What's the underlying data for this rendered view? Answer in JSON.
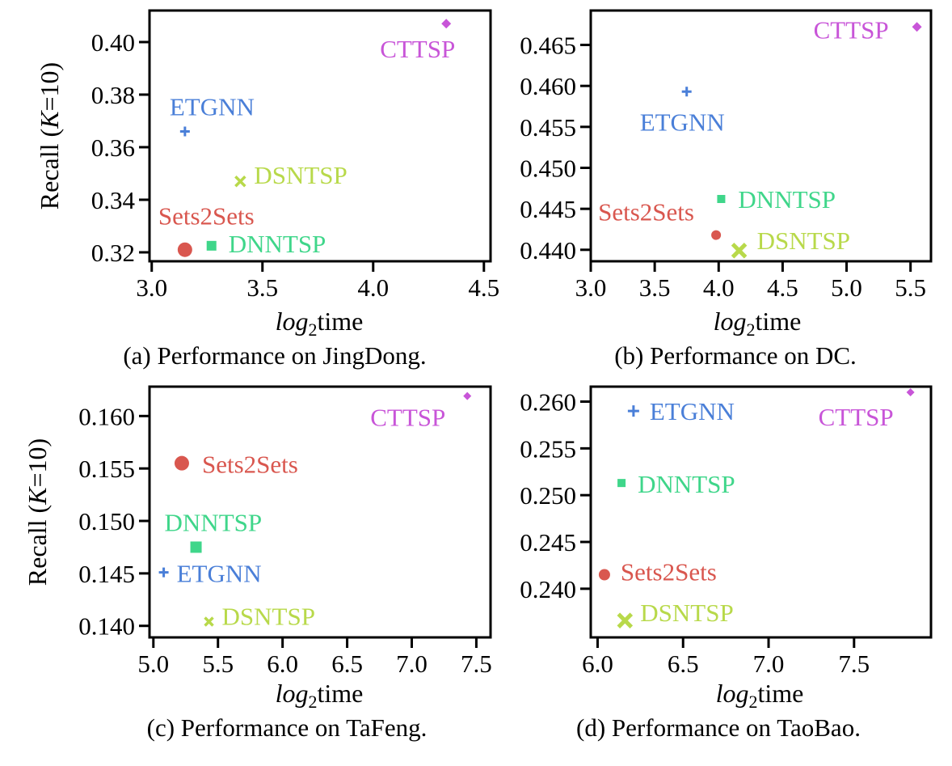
{
  "chart_data": [
    {
      "type": "scatter",
      "caption": "(a) Performance on JingDong.",
      "xlabel_italic": "log",
      "xlabel_sub": "2",
      "xlabel_rest": "time",
      "ylabel_pre": "Recall (",
      "ylabel_italic": "K",
      "ylabel_post": "=10)",
      "xlim": [
        2.99,
        4.53
      ],
      "ylim": [
        0.3166,
        0.412
      ],
      "xticks": [
        "3.0",
        "3.5",
        "4.0",
        "4.5"
      ],
      "yticks": [
        "0.32",
        "0.34",
        "0.36",
        "0.38",
        "0.40"
      ],
      "points": [
        {
          "name": "CTTSP",
          "x": 4.33,
          "y": 0.407
        },
        {
          "name": "ETGNN",
          "x": 3.15,
          "y": 0.366
        },
        {
          "name": "DSNTSP",
          "x": 3.4,
          "y": 0.347
        },
        {
          "name": "Sets2Sets",
          "x": 3.15,
          "y": 0.321
        },
        {
          "name": "DNNTSP",
          "x": 3.27,
          "y": 0.3225
        }
      ]
    },
    {
      "type": "scatter",
      "caption": "(b) Performance on DC.",
      "xlabel_italic": "log",
      "xlabel_sub": "2",
      "xlabel_rest": "time",
      "xlim": [
        3.0,
        5.66
      ],
      "ylim": [
        0.4386,
        0.4692
      ],
      "xticks": [
        "3.0",
        "3.5",
        "4.0",
        "4.5",
        "5.0",
        "5.5"
      ],
      "yticks": [
        "0.440",
        "0.445",
        "0.450",
        "0.455",
        "0.460",
        "0.465"
      ],
      "points": [
        {
          "name": "CTTSP",
          "x": 5.55,
          "y": 0.4672
        },
        {
          "name": "ETGNN",
          "x": 3.75,
          "y": 0.4593
        },
        {
          "name": "DNNTSP",
          "x": 4.02,
          "y": 0.4462
        },
        {
          "name": "Sets2Sets",
          "x": 3.98,
          "y": 0.4418
        },
        {
          "name": "DSNTSP",
          "x": 4.16,
          "y": 0.4399
        }
      ]
    },
    {
      "type": "scatter",
      "caption": "(c) Performance on TaFeng.",
      "xlabel_italic": "log",
      "xlabel_sub": "2",
      "xlabel_rest": "time",
      "ylabel_pre": "Recall (",
      "ylabel_italic": "K",
      "ylabel_post": "=10)",
      "xlim": [
        4.97,
        7.61
      ],
      "ylim": [
        0.1389,
        0.1628
      ],
      "xticks": [
        "5.0",
        "5.5",
        "6.0",
        "6.5",
        "7.0",
        "7.5"
      ],
      "yticks": [
        "0.140",
        "0.145",
        "0.150",
        "0.155",
        "0.160"
      ],
      "points": [
        {
          "name": "CTTSP",
          "x": 7.43,
          "y": 0.1619
        },
        {
          "name": "Sets2Sets",
          "x": 5.22,
          "y": 0.1555
        },
        {
          "name": "DNNTSP",
          "x": 5.33,
          "y": 0.1475
        },
        {
          "name": "ETGNN",
          "x": 5.08,
          "y": 0.1451
        },
        {
          "name": "DSNTSP",
          "x": 5.43,
          "y": 0.1404
        }
      ]
    },
    {
      "type": "scatter",
      "caption": "(d) Performance on TaoBao.",
      "xlabel_italic": "log",
      "xlabel_sub": "2",
      "xlabel_rest": "time",
      "xlim": [
        5.96,
        7.95
      ],
      "ylim": [
        0.2348,
        0.2616
      ],
      "xticks": [
        "6.0",
        "6.5",
        "7.0",
        "7.5"
      ],
      "yticks": [
        "0.240",
        "0.245",
        "0.250",
        "0.255",
        "0.260"
      ],
      "points": [
        {
          "name": "CTTSP",
          "x": 7.83,
          "y": 0.261
        },
        {
          "name": "ETGNN",
          "x": 6.21,
          "y": 0.259
        },
        {
          "name": "DNNTSP",
          "x": 6.14,
          "y": 0.2513
        },
        {
          "name": "Sets2Sets",
          "x": 6.04,
          "y": 0.2415
        },
        {
          "name": "DSNTSP",
          "x": 6.16,
          "y": 0.2366
        }
      ]
    }
  ],
  "series_style": {
    "CTTSP": {
      "color": "#c855d8",
      "marker": "diamond"
    },
    "ETGNN": {
      "color": "#4a7fd8",
      "marker": "plus"
    },
    "DSNTSP": {
      "color": "#b8d94a",
      "marker": "x"
    },
    "Sets2Sets": {
      "color": "#d9574f",
      "marker": "circle"
    },
    "DNNTSP": {
      "color": "#3fd68a",
      "marker": "square"
    }
  }
}
